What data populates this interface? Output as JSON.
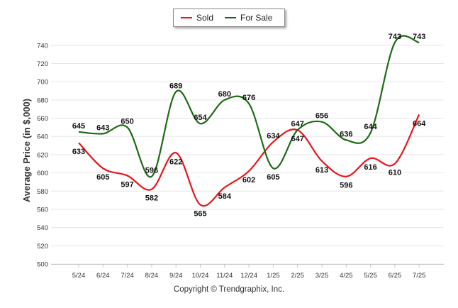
{
  "chart_data": {
    "type": "line",
    "ylabel": "Average Price (in $,000)",
    "ylim": [
      500,
      750
    ],
    "yticks": [
      500,
      520,
      540,
      560,
      580,
      600,
      620,
      640,
      660,
      680,
      700,
      720,
      740
    ],
    "categories": [
      "5/24",
      "6/24",
      "7/24",
      "8/24",
      "9/24",
      "10/24",
      "11/24",
      "12/24",
      "1/25",
      "2/25",
      "3/25",
      "4/25",
      "5/25",
      "6/25",
      "7/25"
    ],
    "series": [
      {
        "name": "Sold",
        "color": "#e8141a",
        "values": [
          633,
          605,
          597,
          582,
          622,
          565,
          584,
          602,
          634,
          647,
          613,
          596,
          616,
          610,
          664
        ]
      },
      {
        "name": "For Sale",
        "color": "#1c6b14",
        "values": [
          645,
          643,
          650,
          596,
          689,
          654,
          680,
          676,
          605,
          647,
          656,
          636,
          644,
          743,
          743
        ]
      }
    ],
    "legend": "top",
    "grid": true
  },
  "footer": {
    "copyright": "Copyright © Trendgraphix, Inc."
  }
}
